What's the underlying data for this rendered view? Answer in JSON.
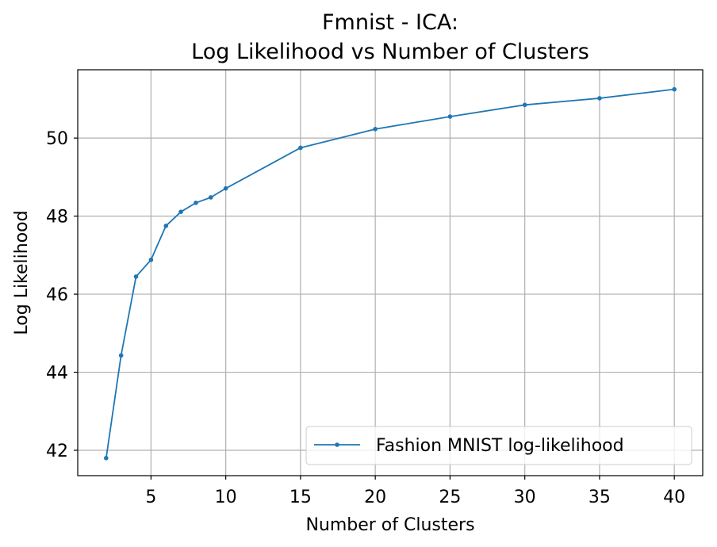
{
  "chart_data": {
    "type": "line",
    "title_line1": "Fmnist - ICA:",
    "title_line2": "Log Likelihood vs Number of Clusters",
    "xlabel": "Number of Clusters",
    "ylabel": "Log Likelihood",
    "xlim": [
      0.1,
      41.9
    ],
    "ylim": [
      41.35,
      51.75
    ],
    "xticks": [
      5,
      10,
      15,
      20,
      25,
      30,
      35,
      40
    ],
    "yticks": [
      42,
      44,
      46,
      48,
      50
    ],
    "grid": true,
    "legend_position": "lower right",
    "series": [
      {
        "name": "Fashion MNIST log-likelihood",
        "color": "#1f77b4",
        "marker": "dot",
        "x": [
          2,
          3,
          4,
          5,
          6,
          7,
          8,
          9,
          10,
          15,
          20,
          25,
          30,
          35,
          40
        ],
        "y": [
          41.8,
          44.43,
          46.45,
          46.88,
          47.75,
          48.11,
          48.34,
          48.48,
          48.71,
          49.75,
          50.23,
          50.55,
          50.85,
          51.02,
          51.25
        ]
      }
    ]
  }
}
